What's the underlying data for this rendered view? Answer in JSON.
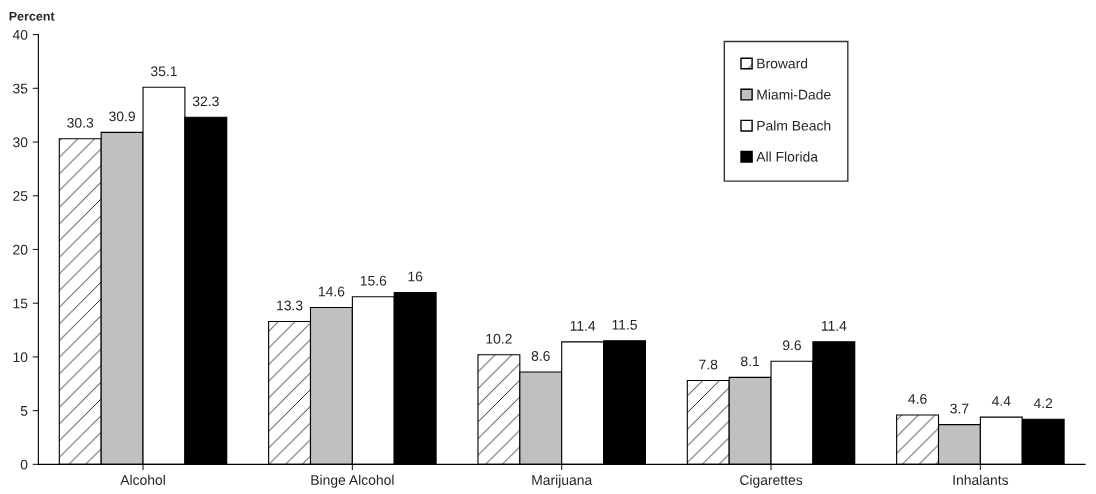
{
  "chart_data": {
    "type": "bar",
    "ylabel": "Percent",
    "categories": [
      "Alcohol",
      "Binge Alcohol",
      "Marijuana",
      "Cigarettes",
      "Inhalants"
    ],
    "series": [
      {
        "name": "Broward",
        "color": "#ffffff",
        "values": [
          30.3,
          13.3,
          10.2,
          7.8,
          4.6
        ]
      },
      {
        "name": "Miami-Dade",
        "color": "#c0c0c0",
        "values": [
          30.9,
          14.6,
          8.6,
          8.1,
          3.7
        ]
      },
      {
        "name": "Palm Beach",
        "color": "#ffffff",
        "values": [
          35.1,
          15.6,
          11.4,
          9.6,
          4.4
        ]
      },
      {
        "name": "All Florida",
        "color": "#000000",
        "values": [
          32.3,
          16,
          11.5,
          11.4,
          4.2
        ]
      }
    ],
    "ylim": [
      0,
      40
    ],
    "yticks": [
      0,
      5,
      10,
      15,
      20,
      25,
      30,
      35,
      40
    ],
    "data_labels": true,
    "grid": false,
    "legend": "top right"
  }
}
